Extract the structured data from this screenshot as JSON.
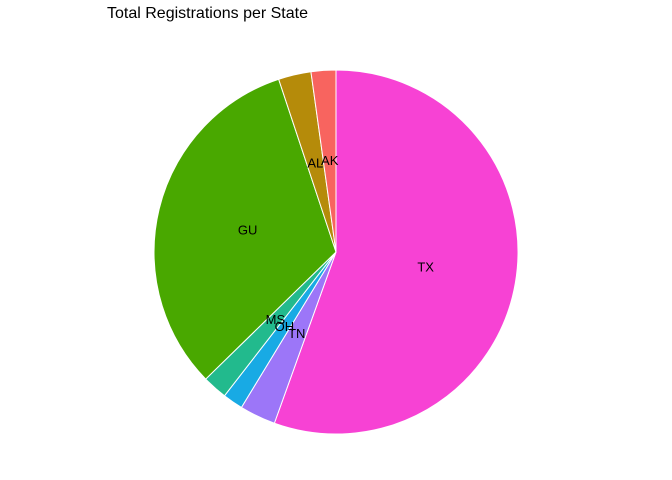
{
  "chart_data": {
    "type": "pie",
    "title": "Total Registrations per State",
    "start": "12 o'clock",
    "direction": "clockwise",
    "slices": [
      {
        "label": "TX",
        "value": 55.5,
        "color": "#F742D4"
      },
      {
        "label": "TN",
        "value": 3.2,
        "color": "#9C76F8"
      },
      {
        "label": "OH",
        "value": 1.8,
        "color": "#18AAE4"
      },
      {
        "label": "MS",
        "value": 2.2,
        "color": "#22BA8D"
      },
      {
        "label": "GU",
        "value": 32.2,
        "color": "#49A800"
      },
      {
        "label": "AL",
        "value": 2.9,
        "color": "#B58B0A"
      },
      {
        "label": "AK",
        "value": 2.2,
        "color": "#F8645F"
      }
    ]
  }
}
